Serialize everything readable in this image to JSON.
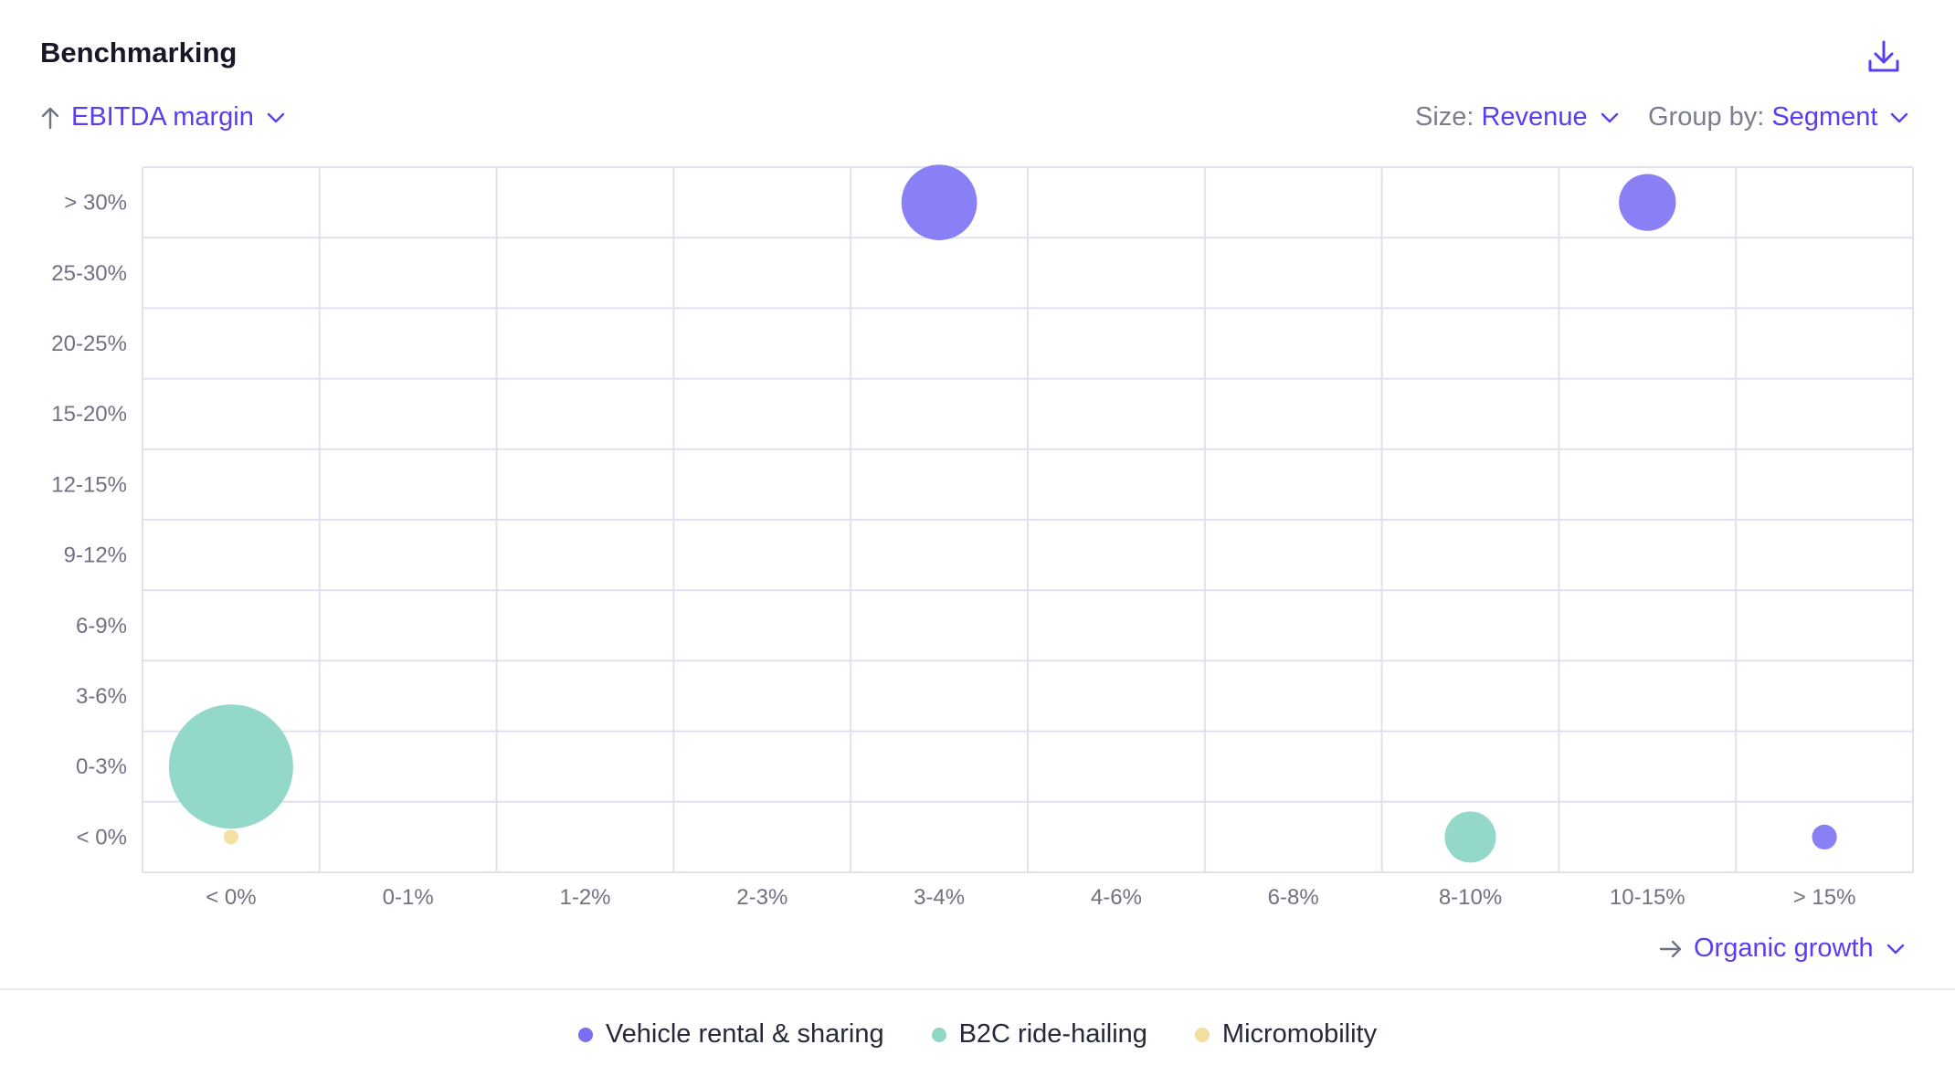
{
  "title": "Benchmarking",
  "download_icon": "download-icon",
  "y_selector": {
    "value": "EBITDA margin",
    "icon": "arrow-up-icon"
  },
  "size_selector": {
    "label": "Size: ",
    "value": "Revenue"
  },
  "group_selector": {
    "label": "Group by: ",
    "value": "Segment"
  },
  "x_selector": {
    "value": "Organic growth",
    "icon": "arrow-right-icon"
  },
  "colors": {
    "accent": "#5b3cf0",
    "Vehicle rental & sharing": "#8a80f6",
    "B2C ride-hailing": "#93d8c9",
    "Micromobility": "#f3e1a4"
  },
  "chart_data": {
    "type": "scatter",
    "x_categories": [
      "< 0%",
      "0-1%",
      "1-2%",
      "2-3%",
      "3-4%",
      "4-6%",
      "6-8%",
      "8-10%",
      "10-15%",
      "> 15%"
    ],
    "y_categories": [
      "< 0%",
      "0-3%",
      "3-6%",
      "6-9%",
      "9-12%",
      "12-15%",
      "15-20%",
      "20-25%",
      "25-30%",
      "> 30%"
    ],
    "xlabel": "Organic growth",
    "ylabel": "EBITDA margin",
    "size_by": "Revenue",
    "grid": true,
    "legend_position": "bottom-center",
    "series": [
      {
        "name": "Vehicle rental & sharing",
        "points": [
          {
            "x": "3-4%",
            "y": "> 30%",
            "size": 37
          },
          {
            "x": "10-15%",
            "y": "> 30%",
            "size": 21
          },
          {
            "x": "> 15%",
            "y": "< 0%",
            "size": 4
          }
        ]
      },
      {
        "name": "B2C ride-hailing",
        "points": [
          {
            "x": "< 0%",
            "y": "0-3%",
            "size": 100
          },
          {
            "x": "8-10%",
            "y": "< 0%",
            "size": 17
          }
        ]
      },
      {
        "name": "Micromobility",
        "points": [
          {
            "x": "< 0%",
            "y": "< 0%",
            "size": 1
          }
        ]
      }
    ]
  }
}
